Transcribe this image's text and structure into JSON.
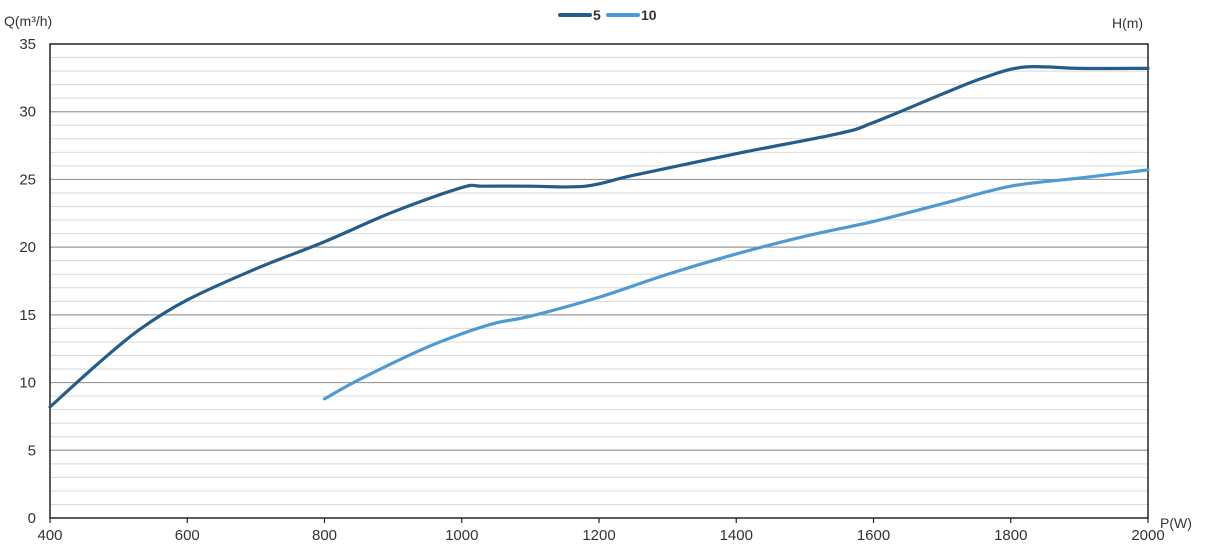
{
  "chart_data": {
    "type": "line",
    "title": "",
    "ylabel": "Q(m³/h)",
    "ylabel_right": "H(m)",
    "xlabel": "P(W)",
    "xlim": [
      400,
      2000
    ],
    "ylim": [
      0,
      35
    ],
    "x_ticks": [
      "400",
      "600",
      "800",
      "1000",
      "1200",
      "1400",
      "1600",
      "1800",
      "2000"
    ],
    "y_ticks": [
      "0",
      "5",
      "10",
      "15",
      "20",
      "25",
      "30",
      "35"
    ],
    "grid": true,
    "legend_position": "top-center",
    "series": [
      {
        "name": "5",
        "color": "#245d8a",
        "x": [
          400,
          470,
          530,
          600,
          700,
          800,
          900,
          1000,
          1030,
          1100,
          1180,
          1250,
          1400,
          1550,
          1600,
          1700,
          1760,
          1820,
          1900,
          2000
        ],
        "y": [
          8.2,
          11.4,
          13.9,
          16.1,
          18.4,
          20.4,
          22.6,
          24.4,
          24.5,
          24.5,
          24.5,
          25.3,
          26.9,
          28.4,
          29.2,
          31.3,
          32.5,
          33.3,
          33.2,
          33.2
        ]
      },
      {
        "name": "10",
        "color": "#4f9ad3",
        "x": [
          800,
          850,
          940,
          1000,
          1050,
          1100,
          1200,
          1300,
          1400,
          1500,
          1600,
          1700,
          1800,
          1900,
          2000
        ],
        "y": [
          8.8,
          10.2,
          12.4,
          13.6,
          14.4,
          14.9,
          16.3,
          18.0,
          19.5,
          20.8,
          21.9,
          23.2,
          24.5,
          25.1,
          25.7
        ]
      }
    ]
  }
}
